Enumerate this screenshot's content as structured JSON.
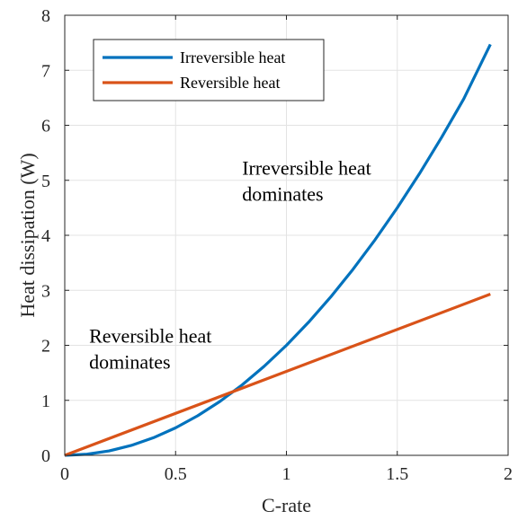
{
  "chart_data": {
    "type": "line",
    "title": "",
    "xlabel": "C-rate",
    "ylabel": "Heat dissipation (W)",
    "xlim": [
      0,
      2
    ],
    "ylim": [
      0,
      8
    ],
    "xticks": [
      0,
      0.5,
      1,
      1.5,
      2
    ],
    "xtick_labels": [
      "0",
      "0.5",
      "1",
      "1.5",
      "2"
    ],
    "yticks": [
      0,
      1,
      2,
      3,
      4,
      5,
      6,
      7,
      8
    ],
    "ytick_labels": [
      "0",
      "1",
      "2",
      "3",
      "4",
      "5",
      "6",
      "7",
      "8"
    ],
    "grid": true,
    "legend_position": "top-left",
    "series": [
      {
        "name": "Irreversible heat",
        "color": "#0072BD",
        "x": [
          0,
          0.1,
          0.2,
          0.3,
          0.4,
          0.5,
          0.6,
          0.7,
          0.75,
          0.8,
          0.9,
          1.0,
          1.1,
          1.2,
          1.3,
          1.4,
          1.5,
          1.6,
          1.7,
          1.8,
          1.92
        ],
        "y": [
          0,
          0.02,
          0.08,
          0.18,
          0.32,
          0.5,
          0.72,
          0.98,
          1.13,
          1.28,
          1.62,
          2.0,
          2.42,
          2.88,
          3.38,
          3.92,
          4.5,
          5.12,
          5.78,
          6.48,
          7.47
        ]
      },
      {
        "name": "Reversible heat",
        "color": "#D95319",
        "x": [
          0,
          1.92
        ],
        "y": [
          0,
          2.93
        ]
      }
    ],
    "annotations": [
      {
        "lines": [
          "Irreversible heat",
          "dominates"
        ],
        "x": 0.8,
        "y": 5.1
      },
      {
        "lines": [
          "Reversible heat",
          "dominates"
        ],
        "x": 0.11,
        "y": 2.05
      }
    ]
  }
}
